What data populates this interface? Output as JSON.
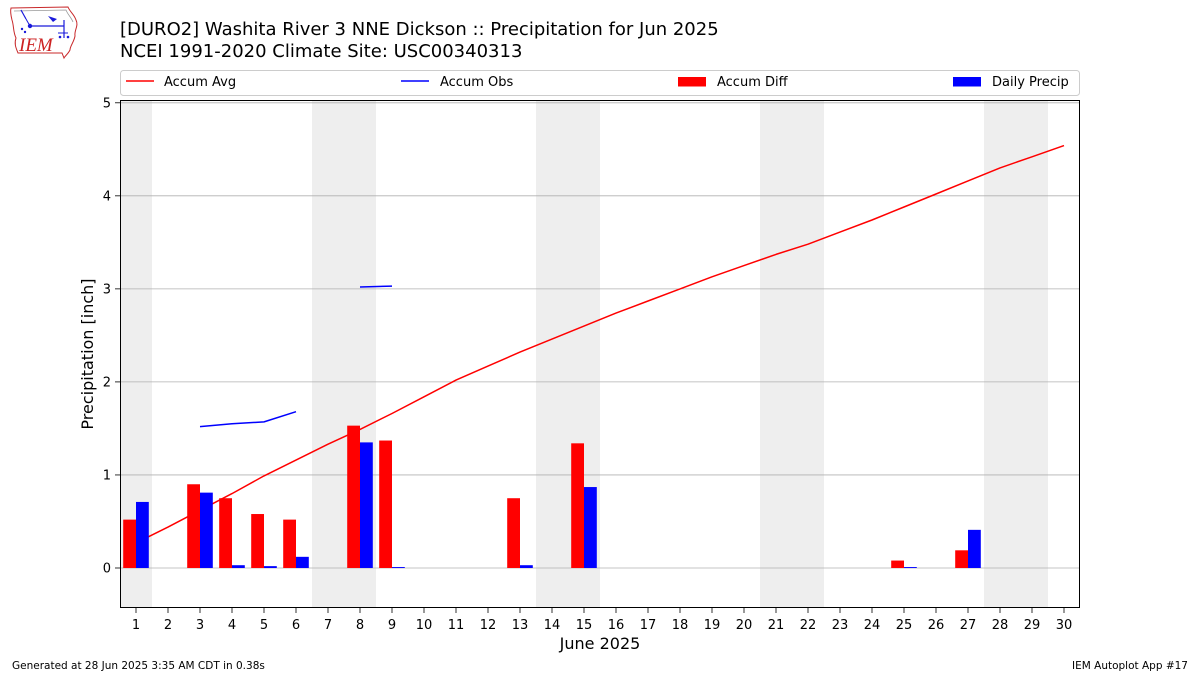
{
  "logo": {
    "text": "IEM"
  },
  "colors": {
    "weekend_shade": "#eeeeee",
    "grid": "#b0b0b0",
    "axis": "#000000",
    "logo_red": "#cc2222",
    "logo_blue": "#1a1adb"
  },
  "footer": {
    "generated": "Generated at 28 Jun 2025 3:35 AM CDT in 0.38s",
    "app": "IEM Autoplot App #17"
  },
  "chart_data": {
    "type": "bar",
    "title": "[DURO2] Washita River 3 NNE Dickson :: Precipitation for Jun 2025",
    "subtitle": "NCEI 1991-2020 Climate Site: USC00340313",
    "xlabel": "June 2025",
    "ylabel": "Precipitation [inch]",
    "x": [
      1,
      2,
      3,
      4,
      5,
      6,
      7,
      8,
      9,
      10,
      11,
      12,
      13,
      14,
      15,
      16,
      17,
      18,
      19,
      20,
      21,
      22,
      23,
      24,
      25,
      26,
      27,
      28,
      29,
      30
    ],
    "xlim": [
      0.5,
      30.5
    ],
    "ylim": [
      -0.43,
      5.03
    ],
    "y_ticks": [
      0,
      1,
      2,
      3,
      4,
      5
    ],
    "grid": "y",
    "legend": "top",
    "shaded_days": [
      1,
      7,
      8,
      14,
      15,
      21,
      22,
      28,
      29
    ],
    "series": [
      {
        "name": "Accum Avg",
        "type": "line",
        "color": "#ff0000",
        "values": [
          0.27,
          0.44,
          0.62,
          0.8,
          0.99,
          1.16,
          1.33,
          1.49,
          1.66,
          1.84,
          2.02,
          2.17,
          2.32,
          2.46,
          2.6,
          2.74,
          2.87,
          3.0,
          3.13,
          3.25,
          3.37,
          3.48,
          3.61,
          3.74,
          3.88,
          4.02,
          4.16,
          4.3,
          4.42,
          4.54
        ]
      },
      {
        "name": "Accum Obs",
        "type": "line",
        "color": "#0000ff",
        "values": [
          null,
          null,
          1.52,
          1.55,
          1.57,
          1.68,
          null,
          3.02,
          3.03,
          null,
          null,
          null,
          null,
          null,
          null,
          null,
          null,
          null,
          null,
          null,
          null,
          null,
          null,
          null,
          null,
          null,
          null,
          null,
          null,
          null
        ]
      },
      {
        "name": "Accum Diff",
        "type": "bar",
        "color": "#ff0000",
        "values": [
          0.52,
          null,
          0.9,
          0.75,
          0.58,
          0.52,
          null,
          1.53,
          1.37,
          null,
          null,
          null,
          0.75,
          null,
          1.34,
          null,
          null,
          null,
          null,
          null,
          null,
          null,
          null,
          null,
          0.08,
          null,
          0.19,
          null,
          null,
          null
        ]
      },
      {
        "name": "Daily Precip",
        "type": "bar",
        "color": "#0000ff",
        "values": [
          0.71,
          null,
          0.81,
          0.03,
          0.02,
          0.12,
          null,
          1.35,
          0.01,
          null,
          null,
          null,
          0.03,
          null,
          0.87,
          null,
          null,
          null,
          null,
          null,
          null,
          null,
          null,
          null,
          0.01,
          null,
          0.41,
          null,
          null,
          null
        ]
      }
    ]
  }
}
